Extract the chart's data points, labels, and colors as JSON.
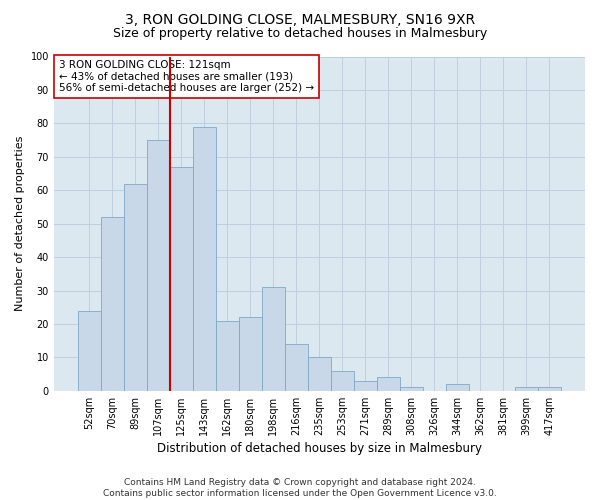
{
  "title": "3, RON GOLDING CLOSE, MALMESBURY, SN16 9XR",
  "subtitle": "Size of property relative to detached houses in Malmesbury",
  "xlabel": "Distribution of detached houses by size in Malmesbury",
  "ylabel": "Number of detached properties",
  "categories": [
    "52sqm",
    "70sqm",
    "89sqm",
    "107sqm",
    "125sqm",
    "143sqm",
    "162sqm",
    "180sqm",
    "198sqm",
    "216sqm",
    "235sqm",
    "253sqm",
    "271sqm",
    "289sqm",
    "308sqm",
    "326sqm",
    "344sqm",
    "362sqm",
    "381sqm",
    "399sqm",
    "417sqm"
  ],
  "values": [
    24,
    52,
    62,
    75,
    67,
    79,
    21,
    22,
    31,
    14,
    10,
    6,
    3,
    4,
    1,
    0,
    2,
    0,
    0,
    1,
    1
  ],
  "bar_color": "#c8d8e8",
  "bar_edge_color": "#7fa8c8",
  "vline_index": 3.5,
  "vline_color": "#cc0000",
  "annotation_text": "3 RON GOLDING CLOSE: 121sqm\n← 43% of detached houses are smaller (193)\n56% of semi-detached houses are larger (252) →",
  "annotation_box_color": "#ffffff",
  "annotation_box_edge": "#cc0000",
  "ylim": [
    0,
    100
  ],
  "yticks": [
    0,
    10,
    20,
    30,
    40,
    50,
    60,
    70,
    80,
    90,
    100
  ],
  "grid_color": "#c0cfe0",
  "background_color": "#dce8f0",
  "footer": "Contains HM Land Registry data © Crown copyright and database right 2024.\nContains public sector information licensed under the Open Government Licence v3.0.",
  "title_fontsize": 10,
  "subtitle_fontsize": 9,
  "xlabel_fontsize": 8.5,
  "ylabel_fontsize": 8,
  "tick_fontsize": 7,
  "annotation_fontsize": 7.5,
  "footer_fontsize": 6.5
}
